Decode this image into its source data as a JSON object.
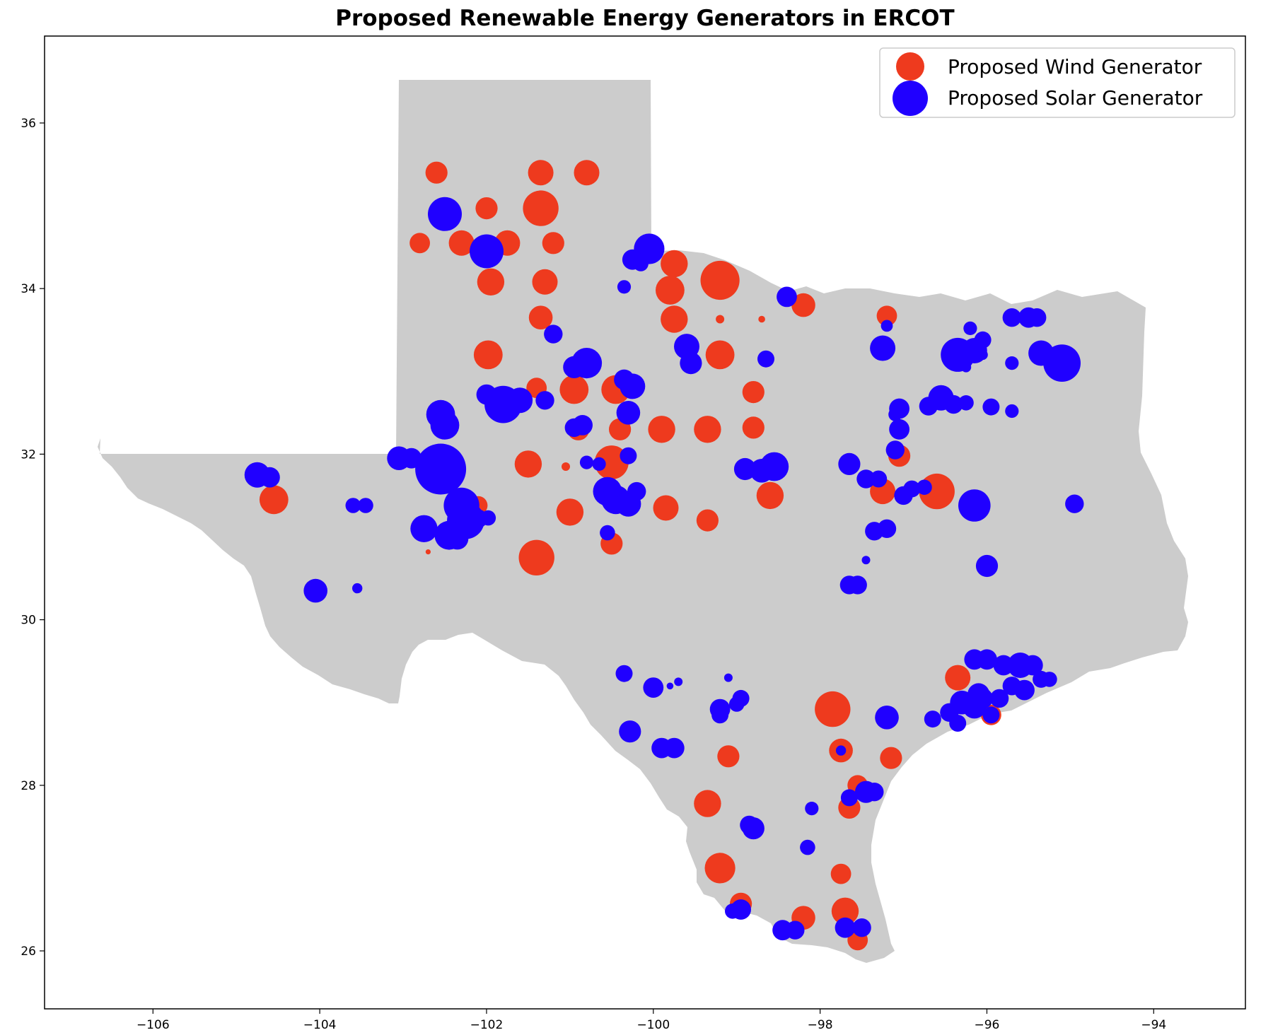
{
  "chart_data": {
    "type": "scatter",
    "title": "Proposed Renewable Energy Generators in ERCOT",
    "xlabel": "",
    "ylabel": "",
    "xlim": [
      -107.3,
      -92.9
    ],
    "ylim": [
      25.3,
      37.05
    ],
    "xticks": [
      -106,
      -104,
      -102,
      -100,
      -98,
      -96,
      -94
    ],
    "yticks": [
      26,
      28,
      30,
      32,
      34,
      36
    ],
    "xtick_labels": [
      "−106",
      "−104",
      "−102",
      "−100",
      "−98",
      "−96",
      "−94"
    ],
    "ytick_labels": [
      "26",
      "28",
      "30",
      "32",
      "34",
      "36"
    ],
    "grid": false,
    "legend_position": "top-right",
    "colors": {
      "wind": "#ee3a1e",
      "solar": "#2000ff",
      "land": "#cccccc"
    },
    "series": [
      {
        "name": "Proposed Wind Generator",
        "color": "#ee3a1e",
        "points": [
          [
            -102.6,
            35.4,
            13
          ],
          [
            -101.35,
            35.4,
            15
          ],
          [
            -100.8,
            35.4,
            15
          ],
          [
            -102.0,
            34.97,
            13
          ],
          [
            -101.35,
            34.97,
            21
          ],
          [
            -102.8,
            34.55,
            12
          ],
          [
            -102.3,
            34.55,
            15
          ],
          [
            -101.75,
            34.55,
            15
          ],
          [
            -101.2,
            34.55,
            13
          ],
          [
            -101.95,
            34.08,
            16
          ],
          [
            -101.3,
            34.08,
            15
          ],
          [
            -99.75,
            34.3,
            16
          ],
          [
            -99.8,
            33.98,
            17
          ],
          [
            -99.2,
            34.1,
            23
          ],
          [
            -99.75,
            33.63,
            16
          ],
          [
            -99.2,
            33.63,
            5
          ],
          [
            -98.7,
            33.63,
            4
          ],
          [
            -98.2,
            33.8,
            14
          ],
          [
            -97.2,
            33.67,
            12
          ],
          [
            -101.35,
            33.65,
            14
          ],
          [
            -101.98,
            33.2,
            17
          ],
          [
            -101.4,
            32.8,
            12
          ],
          [
            -100.95,
            32.78,
            17
          ],
          [
            -100.45,
            32.78,
            17
          ],
          [
            -99.2,
            33.2,
            17
          ],
          [
            -98.8,
            32.75,
            13
          ],
          [
            -100.9,
            32.3,
            13
          ],
          [
            -100.4,
            32.3,
            13
          ],
          [
            -99.9,
            32.3,
            16
          ],
          [
            -99.35,
            32.3,
            16
          ],
          [
            -98.8,
            32.32,
            13
          ],
          [
            -100.5,
            31.9,
            20
          ],
          [
            -101.5,
            31.88,
            16
          ],
          [
            -101.05,
            31.85,
            5
          ],
          [
            -102.6,
            31.8,
            10
          ],
          [
            -102.1,
            31.38,
            11
          ],
          [
            -101.0,
            31.3,
            16
          ],
          [
            -99.85,
            31.35,
            15
          ],
          [
            -99.35,
            31.2,
            13
          ],
          [
            -98.6,
            31.5,
            16
          ],
          [
            -97.25,
            31.55,
            15
          ],
          [
            -97.05,
            31.98,
            13
          ],
          [
            -96.6,
            31.55,
            21
          ],
          [
            -104.55,
            31.45,
            17
          ],
          [
            -101.4,
            30.75,
            21
          ],
          [
            -100.5,
            30.92,
            13
          ],
          [
            -102.7,
            30.82,
            3
          ],
          [
            -97.85,
            28.92,
            21
          ],
          [
            -97.75,
            28.42,
            14
          ],
          [
            -97.55,
            28.0,
            12
          ],
          [
            -97.65,
            27.73,
            13
          ],
          [
            -97.15,
            28.33,
            13
          ],
          [
            -99.1,
            28.35,
            13
          ],
          [
            -99.35,
            27.78,
            16
          ],
          [
            -99.2,
            27.0,
            18
          ],
          [
            -98.95,
            26.57,
            13
          ],
          [
            -98.2,
            26.4,
            14
          ],
          [
            -97.75,
            26.93,
            12
          ],
          [
            -97.7,
            26.48,
            16
          ],
          [
            -97.55,
            26.13,
            12
          ],
          [
            -96.35,
            29.3,
            15
          ],
          [
            -95.95,
            28.85,
            12
          ]
        ]
      },
      {
        "name": "Proposed Solar Generator",
        "color": "#2000ff",
        "points": [
          [
            -102.5,
            34.9,
            20
          ],
          [
            -102.0,
            34.45,
            20
          ],
          [
            -100.05,
            34.48,
            18
          ],
          [
            -100.25,
            34.35,
            12
          ],
          [
            -100.15,
            34.3,
            9
          ],
          [
            -100.35,
            34.02,
            8
          ],
          [
            -98.4,
            33.9,
            12
          ],
          [
            -97.2,
            33.55,
            7
          ],
          [
            -101.2,
            33.45,
            11
          ],
          [
            -99.6,
            33.3,
            15
          ],
          [
            -99.55,
            33.1,
            13
          ],
          [
            -98.65,
            33.15,
            10
          ],
          [
            -97.25,
            33.28,
            15
          ],
          [
            -100.8,
            33.1,
            18
          ],
          [
            -100.95,
            33.05,
            13
          ],
          [
            -100.35,
            32.9,
            12
          ],
          [
            -100.25,
            32.82,
            15
          ],
          [
            -100.3,
            32.5,
            14
          ],
          [
            -102.0,
            32.72,
            12
          ],
          [
            -101.8,
            32.6,
            22
          ],
          [
            -101.6,
            32.65,
            15
          ],
          [
            -101.3,
            32.65,
            11
          ],
          [
            -102.55,
            32.48,
            17
          ],
          [
            -102.5,
            32.35,
            17
          ],
          [
            -100.85,
            32.35,
            12
          ],
          [
            -100.95,
            32.32,
            11
          ],
          [
            -103.05,
            31.95,
            14
          ],
          [
            -102.9,
            31.95,
            12
          ],
          [
            -102.55,
            31.82,
            30
          ],
          [
            -100.8,
            31.9,
            8
          ],
          [
            -100.65,
            31.88,
            8
          ],
          [
            -100.3,
            31.98,
            10
          ],
          [
            -104.75,
            31.75,
            15
          ],
          [
            -104.6,
            31.72,
            12
          ],
          [
            -103.6,
            31.38,
            9
          ],
          [
            -103.45,
            31.38,
            9
          ],
          [
            -102.3,
            31.38,
            21
          ],
          [
            -102.25,
            31.2,
            22
          ],
          [
            -102.1,
            31.22,
            11
          ],
          [
            -101.98,
            31.23,
            9
          ],
          [
            -102.75,
            31.1,
            16
          ],
          [
            -102.45,
            31.02,
            17
          ],
          [
            -102.35,
            30.98,
            13
          ],
          [
            -100.55,
            31.55,
            17
          ],
          [
            -100.45,
            31.45,
            17
          ],
          [
            -100.3,
            31.4,
            15
          ],
          [
            -100.2,
            31.55,
            11
          ],
          [
            -100.55,
            31.05,
            9
          ],
          [
            -98.9,
            31.82,
            13
          ],
          [
            -98.7,
            31.8,
            14
          ],
          [
            -98.55,
            31.85,
            17
          ],
          [
            -97.65,
            31.88,
            13
          ],
          [
            -97.45,
            31.7,
            11
          ],
          [
            -97.3,
            31.7,
            10
          ],
          [
            -97.1,
            32.05,
            11
          ],
          [
            -97.1,
            32.48,
            8
          ],
          [
            -97.05,
            32.55,
            12
          ],
          [
            -97.05,
            32.3,
            12
          ],
          [
            -97.0,
            31.5,
            11
          ],
          [
            -96.9,
            31.58,
            10
          ],
          [
            -96.75,
            31.6,
            9
          ],
          [
            -96.7,
            32.58,
            11
          ],
          [
            -96.55,
            32.68,
            15
          ],
          [
            -96.4,
            32.6,
            11
          ],
          [
            -96.25,
            32.62,
            9
          ],
          [
            -96.35,
            33.2,
            20
          ],
          [
            -96.15,
            33.25,
            15
          ],
          [
            -96.2,
            33.52,
            8
          ],
          [
            -96.05,
            33.38,
            10
          ],
          [
            -96.05,
            33.2,
            6
          ],
          [
            -96.25,
            33.05,
            6
          ],
          [
            -95.7,
            33.65,
            11
          ],
          [
            -95.5,
            33.65,
            12
          ],
          [
            -95.4,
            33.65,
            11
          ],
          [
            -95.7,
            33.1,
            8
          ],
          [
            -95.35,
            33.22,
            15
          ],
          [
            -95.1,
            33.1,
            22
          ],
          [
            -95.95,
            32.57,
            10
          ],
          [
            -95.7,
            32.52,
            8
          ],
          [
            -96.15,
            31.38,
            19
          ],
          [
            -94.95,
            31.4,
            11
          ],
          [
            -97.2,
            31.1,
            11
          ],
          [
            -97.35,
            31.07,
            11
          ],
          [
            -97.45,
            30.72,
            5
          ],
          [
            -97.65,
            30.42,
            11
          ],
          [
            -97.55,
            30.42,
            11
          ],
          [
            -104.05,
            30.35,
            14
          ],
          [
            -103.55,
            30.38,
            6
          ],
          [
            -96.0,
            30.65,
            13
          ],
          [
            -96.15,
            29.52,
            12
          ],
          [
            -96.0,
            29.52,
            12
          ],
          [
            -95.8,
            29.45,
            12
          ],
          [
            -95.6,
            29.45,
            15
          ],
          [
            -95.45,
            29.45,
            12
          ],
          [
            -95.35,
            29.28,
            10
          ],
          [
            -95.25,
            29.28,
            9
          ],
          [
            -95.55,
            29.15,
            12
          ],
          [
            -95.7,
            29.2,
            11
          ],
          [
            -96.1,
            29.1,
            13
          ],
          [
            -96.3,
            29.0,
            14
          ],
          [
            -96.15,
            28.95,
            14
          ],
          [
            -96.05,
            29.05,
            12
          ],
          [
            -95.85,
            29.05,
            11
          ],
          [
            -96.45,
            28.88,
            11
          ],
          [
            -96.65,
            28.8,
            10
          ],
          [
            -96.35,
            28.75,
            10
          ],
          [
            -95.95,
            28.85,
            10
          ],
          [
            -97.2,
            28.82,
            14
          ],
          [
            -100.35,
            29.35,
            10
          ],
          [
            -100.0,
            29.18,
            12
          ],
          [
            -99.8,
            29.2,
            4
          ],
          [
            -99.7,
            29.25,
            5
          ],
          [
            -99.1,
            29.3,
            5
          ],
          [
            -99.2,
            28.92,
            12
          ],
          [
            -99.0,
            28.98,
            9
          ],
          [
            -99.2,
            28.85,
            10
          ],
          [
            -98.95,
            29.05,
            10
          ],
          [
            -100.28,
            28.65,
            13
          ],
          [
            -99.9,
            28.45,
            12
          ],
          [
            -99.75,
            28.45,
            12
          ],
          [
            -98.1,
            27.72,
            8
          ],
          [
            -97.65,
            27.85,
            10
          ],
          [
            -97.45,
            27.92,
            13
          ],
          [
            -97.35,
            27.92,
            11
          ],
          [
            -98.15,
            27.25,
            9
          ],
          [
            -98.8,
            27.48,
            13
          ],
          [
            -98.85,
            27.52,
            11
          ],
          [
            -98.95,
            26.5,
            12
          ],
          [
            -99.05,
            26.48,
            9
          ],
          [
            -98.45,
            26.25,
            12
          ],
          [
            -98.3,
            26.25,
            11
          ],
          [
            -97.7,
            26.28,
            12
          ],
          [
            -97.5,
            26.28,
            11
          ],
          [
            -97.75,
            28.42,
            6
          ]
        ]
      }
    ]
  }
}
